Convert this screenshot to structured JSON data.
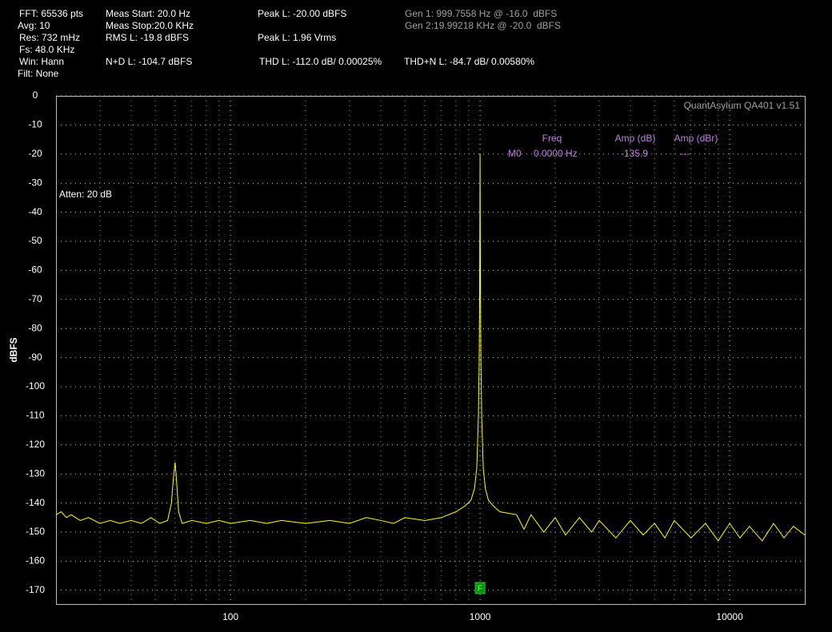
{
  "header": {
    "col1": [
      "FFT: 65536 pts",
      "Avg: 10",
      "Res: 732 mHz",
      "Fs: 48.0 KHz",
      "Win: Hann",
      "Filt: None"
    ],
    "meas_start": "Meas Start: 20.0 Hz",
    "meas_stop": "Meas Stop:20.0 KHz",
    "rms": "RMS L: -19.8 dBFS",
    "nd": "N+D L: -104.7 dBFS",
    "peak_dbfs": "Peak L: -20.00 dBFS",
    "peak_vrms": "Peak L: 1.96 Vrms",
    "thd": "THD L: -112.0 dB/ 0.00025%",
    "gen1": "Gen 1: 999.7558 Hz @ -16.0  dBFS",
    "gen2": "Gen 2:19.99218 KHz @ -20.0  dBFS",
    "thdn": "THD+N L: -84.7 dB/ 0.00580%"
  },
  "chart_data": {
    "type": "line",
    "watermark": "QuantAsylum QA401 v1.51",
    "annotation": "Atten: 20 dB",
    "y_label": "dBFS",
    "log_x": true,
    "grid": true,
    "xlim": [
      20,
      20000
    ],
    "ylim": [
      -175,
      0
    ],
    "xticks": [
      100,
      1000,
      10000
    ],
    "yticks": [
      0,
      -10,
      -20,
      -30,
      -40,
      -50,
      -60,
      -70,
      -80,
      -90,
      -100,
      -110,
      -120,
      -130,
      -140,
      -150,
      -160,
      -170
    ],
    "marker_table": {
      "headers": [
        "Freq",
        "Amp (dB)",
        "Amp (dBr)"
      ],
      "row": [
        "M0",
        "0.0000 Hz",
        "-135.9",
        "---"
      ]
    },
    "fundamental_marker": {
      "label": "F",
      "x": 1000
    },
    "series": [
      {
        "name": "L",
        "color": "#ffff00",
        "x": [
          20,
          21,
          22,
          23,
          25,
          27,
          30,
          33,
          36,
          40,
          44,
          48,
          52,
          56,
          58,
          59,
          60,
          61,
          62,
          64,
          70,
          80,
          90,
          100,
          120,
          140,
          160,
          200,
          250,
          300,
          350,
          400,
          450,
          500,
          600,
          700,
          800,
          870,
          920,
          950,
          970,
          985,
          992,
          996,
          998,
          1000,
          1002,
          1004,
          1008,
          1015,
          1030,
          1050,
          1080,
          1130,
          1200,
          1400,
          1500,
          1600,
          1800,
          2000,
          2200,
          2500,
          2800,
          3000,
          3500,
          4000,
          4500,
          5000,
          5500,
          6000,
          7000,
          8000,
          9000,
          10000,
          11000,
          12000,
          13500,
          15000,
          16500,
          18000,
          20000
        ],
        "values": [
          -144,
          -143,
          -145,
          -144,
          -146,
          -145,
          -147,
          -146,
          -147,
          -146,
          -147,
          -145,
          -147,
          -146,
          -140,
          -132,
          -126,
          -134,
          -143,
          -147,
          -146,
          -147,
          -146,
          -147,
          -146,
          -147,
          -146,
          -147,
          -146,
          -147,
          -145,
          -146,
          -147,
          -145,
          -146,
          -145,
          -143,
          -141,
          -139,
          -135,
          -128,
          -110,
          -90,
          -68,
          -45,
          -20,
          -45,
          -68,
          -90,
          -110,
          -128,
          -135,
          -139,
          -141,
          -143,
          -144,
          -149,
          -144,
          -150,
          -145,
          -151,
          -145,
          -150,
          -146,
          -152,
          -146,
          -151,
          -147,
          -152,
          -146,
          -152,
          -147,
          -153,
          -147,
          -152,
          -148,
          -153,
          -147,
          -152,
          -148,
          -151
        ]
      }
    ]
  }
}
